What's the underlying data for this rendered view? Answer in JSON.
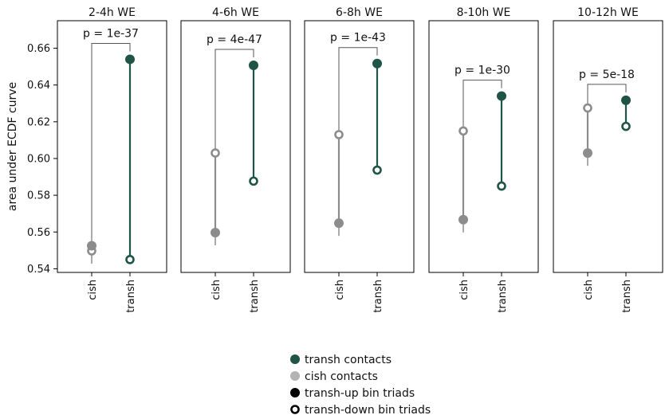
{
  "chart_data": {
    "type": "scatter",
    "ylabel": "area under ECDF curve",
    "ylim": [
      0.538,
      0.675
    ],
    "yticks": [
      "0.54",
      "0.56",
      "0.58",
      "0.60",
      "0.62",
      "0.64",
      "0.66"
    ],
    "yticks_values": [
      0.54,
      0.56,
      0.58,
      0.6,
      0.62,
      0.64,
      0.66
    ],
    "categories": [
      "cish",
      "transh"
    ],
    "colors": {
      "transh": "#1f5446",
      "cish": "#8c8c8c",
      "cish_legend": "#b3b3b3",
      "bracket": "#555555"
    },
    "panels": [
      {
        "title": "2-4h WE",
        "pvalue": "p = 1e-37",
        "cish": {
          "up": 0.5525,
          "down": 0.5497
        },
        "transh": {
          "up": 0.654,
          "down": 0.545
        }
      },
      {
        "title": "4-6h WE",
        "pvalue": "p = 4e-47",
        "cish": {
          "up": 0.5597,
          "down": 0.603
        },
        "transh": {
          "up": 0.6507,
          "down": 0.5877
        }
      },
      {
        "title": "6-8h WE",
        "pvalue": "p = 1e-43",
        "cish": {
          "up": 0.5648,
          "down": 0.613
        },
        "transh": {
          "up": 0.6517,
          "down": 0.5937
        }
      },
      {
        "title": "8-10h WE",
        "pvalue": "p = 1e-30",
        "cish": {
          "up": 0.5667,
          "down": 0.615
        },
        "transh": {
          "up": 0.634,
          "down": 0.585
        }
      },
      {
        "title": "10-12h WE",
        "pvalue": "p = 5e-18",
        "cish": {
          "up": 0.603,
          "down": 0.6275
        },
        "transh": {
          "up": 0.6317,
          "down": 0.6175
        }
      }
    ],
    "legend": [
      {
        "label": "transh contacts",
        "marker": "filled",
        "color": "#1f5446"
      },
      {
        "label": "cish contacts",
        "marker": "filled",
        "color": "#b3b3b3"
      },
      {
        "label": "transh-up bin triads",
        "marker": "filled",
        "color": "#000000"
      },
      {
        "label": "transh-down bin triads",
        "marker": "hollow",
        "color": "#000000"
      }
    ],
    "legend_position": "bottom-center",
    "grid": false
  }
}
